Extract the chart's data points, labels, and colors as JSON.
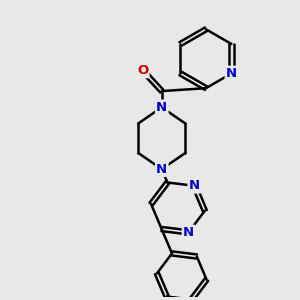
{
  "background_color": "#e8e8e8",
  "bond_color": "#000000",
  "nitrogen_color": "#0000cc",
  "oxygen_color": "#cc0000",
  "bond_width": 1.8,
  "figsize": [
    3.0,
    3.0
  ],
  "dpi": 100,
  "xlim": [
    0,
    10
  ],
  "ylim": [
    0,
    10
  ]
}
